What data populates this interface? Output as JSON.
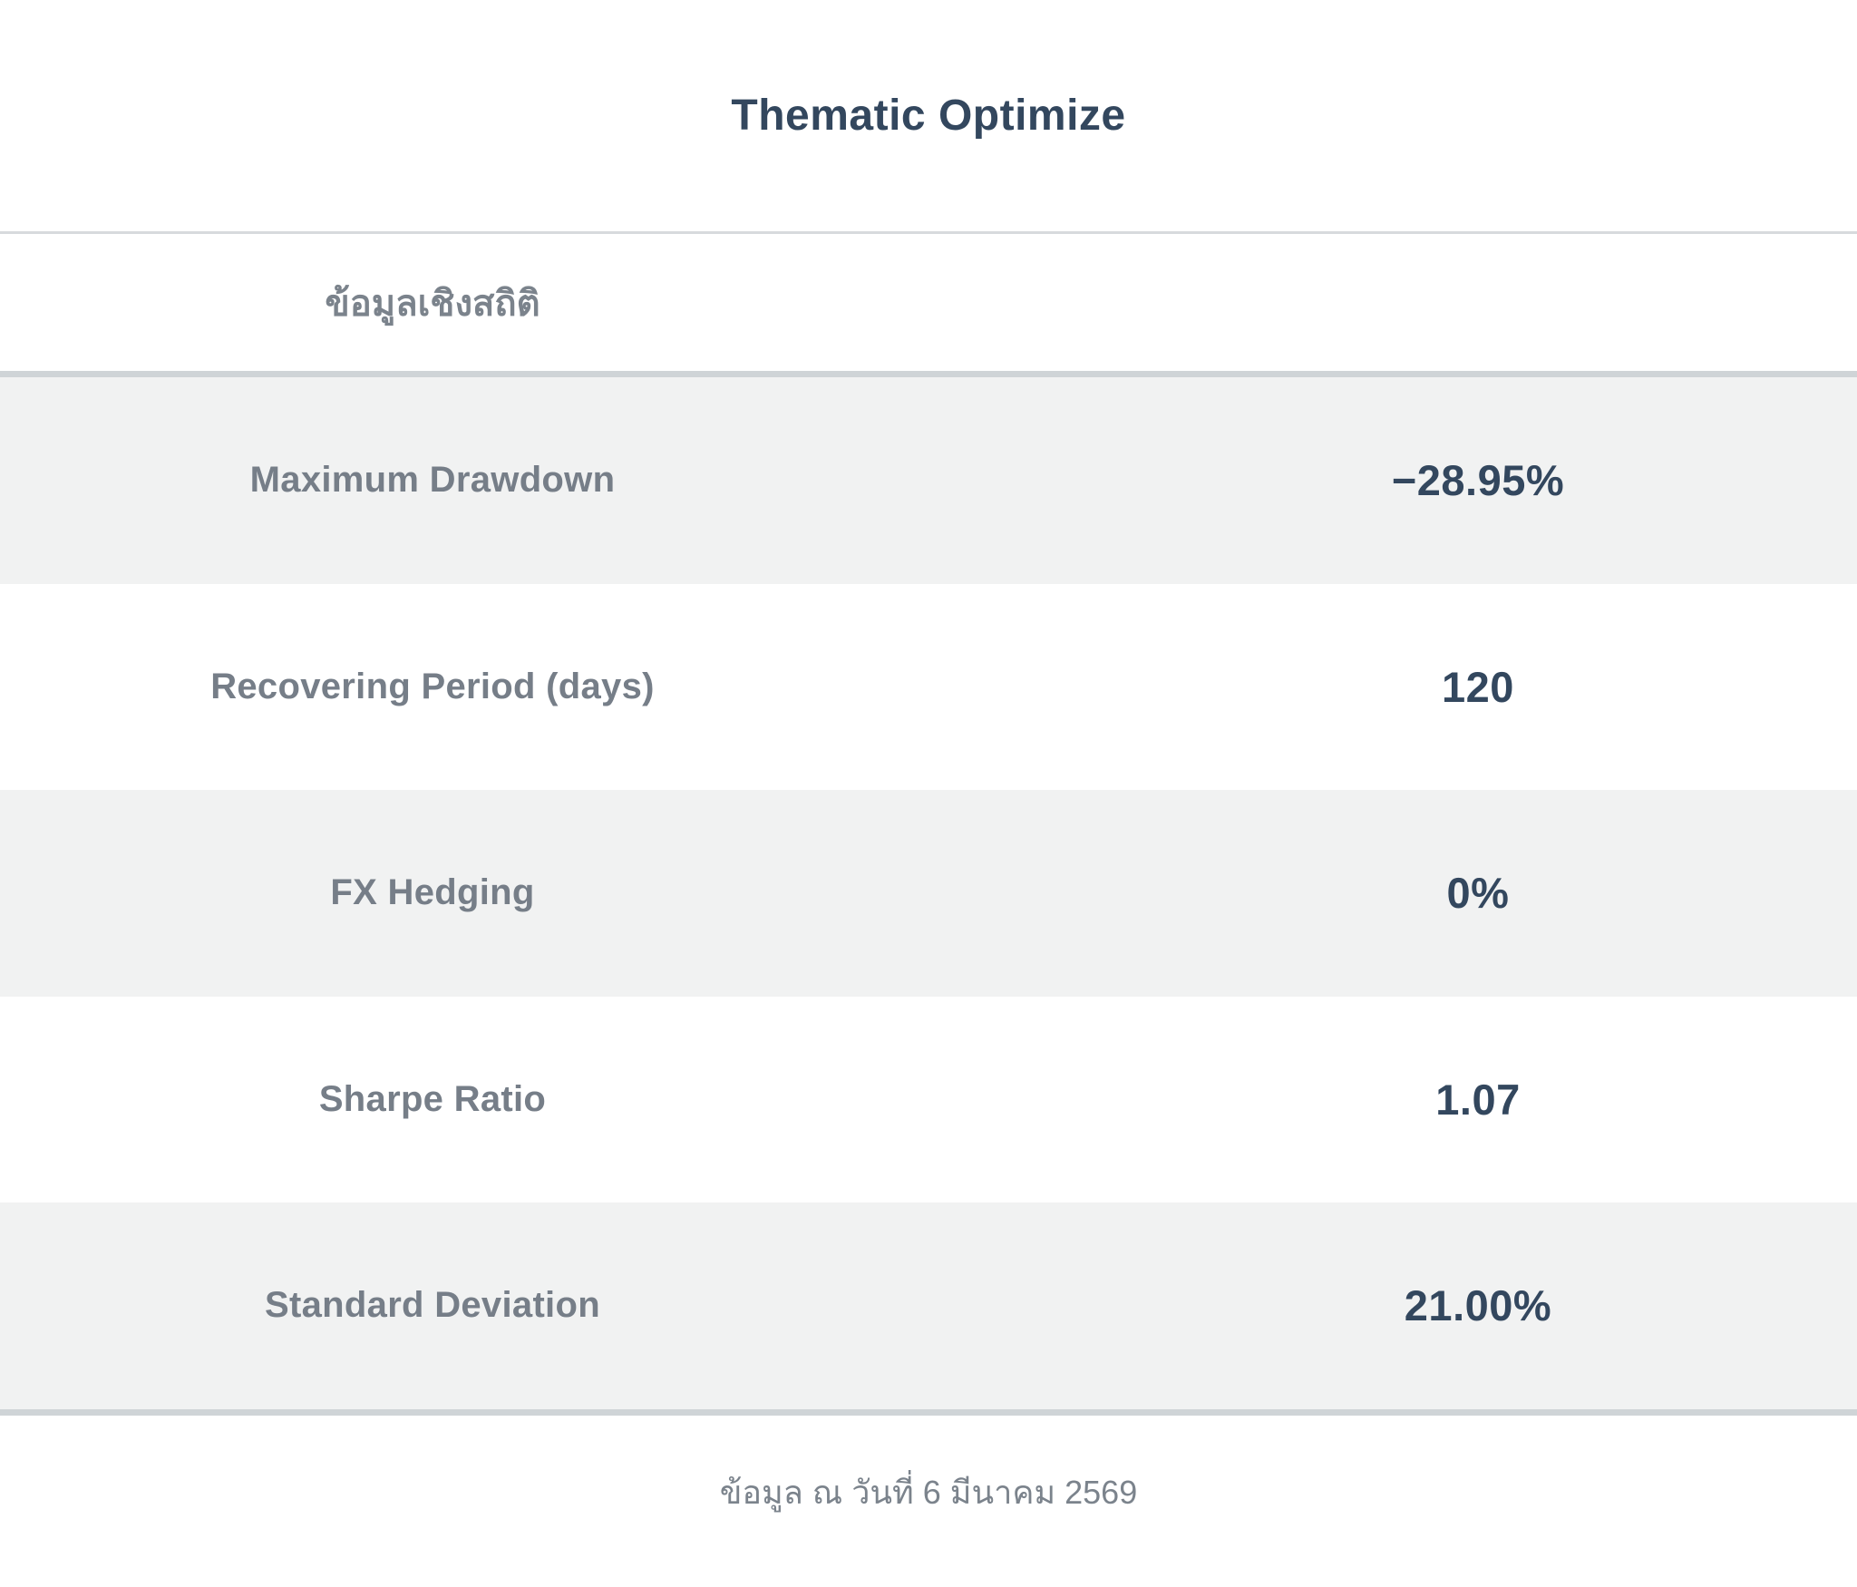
{
  "page": {
    "title": "Thematic Optimize",
    "section_title": "ข้อมูลเชิงสถิติ",
    "footer_note": "ข้อมูล ณ วันที่ 6 มีนาคม 2569"
  },
  "stats": {
    "rows": [
      {
        "label": "Maximum Drawdown",
        "value": "−28.95%"
      },
      {
        "label": "Recovering Period (days)",
        "value": "120"
      },
      {
        "label": "FX Hedging",
        "value": "0%"
      },
      {
        "label": "Sharpe Ratio",
        "value": "1.07"
      },
      {
        "label": "Standard Deviation",
        "value": "21.00%"
      }
    ]
  },
  "colors": {
    "accent_navy": "#33475e",
    "label_gray": "#767e88",
    "row_alt_bg": "#f1f2f2",
    "table_divider": "#cfd4d7",
    "header_divider": "#d7dadd"
  }
}
